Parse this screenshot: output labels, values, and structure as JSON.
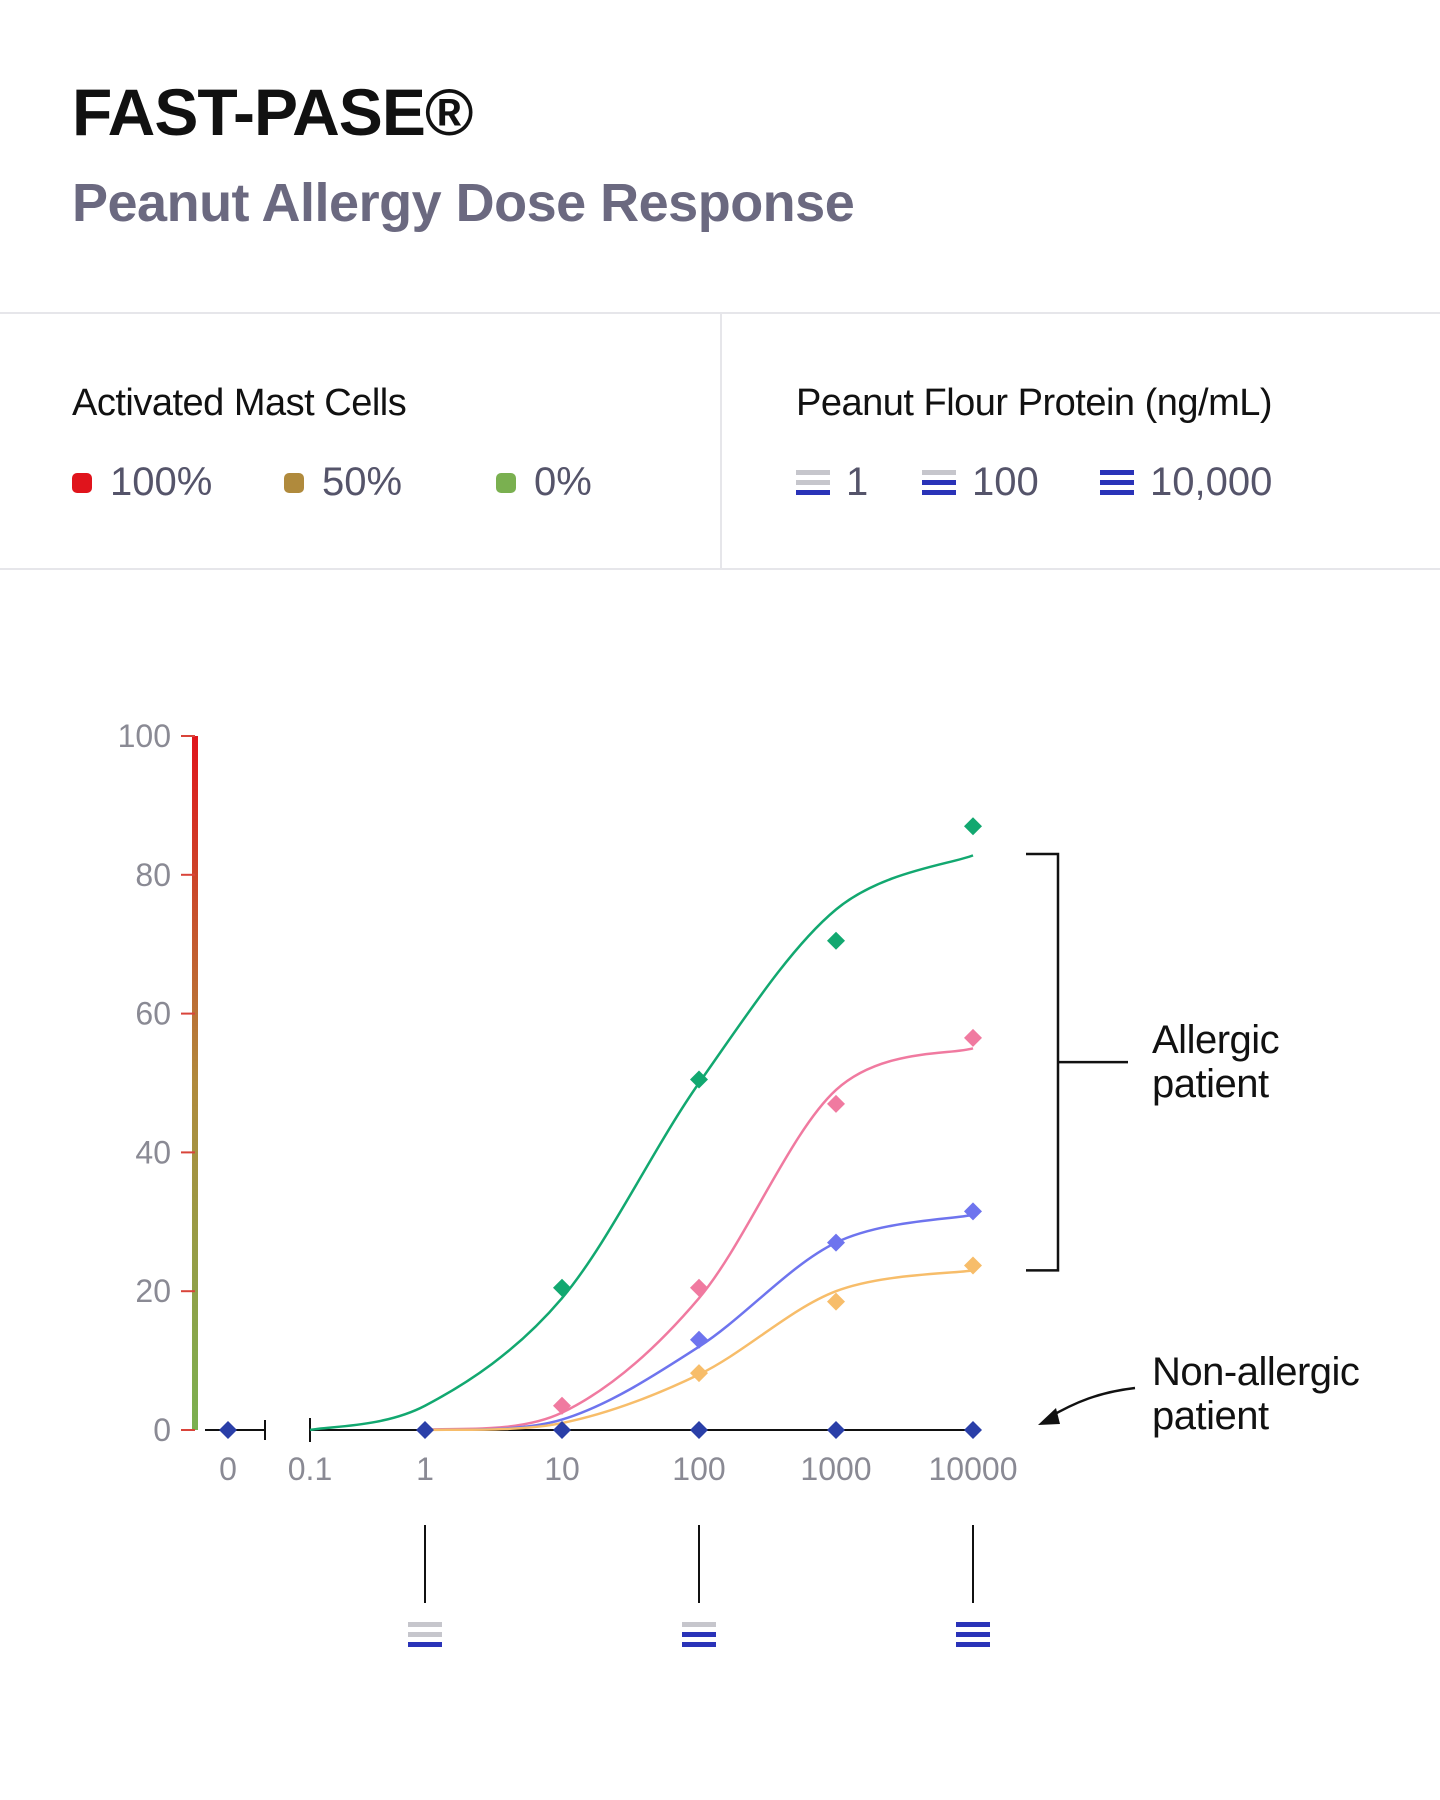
{
  "header": {
    "title": "FAST-PASE®",
    "subtitle": "Peanut Allergy Dose Response"
  },
  "legend_cells": {
    "title": "Activated Mast Cells",
    "items": [
      {
        "label": "100%",
        "color": "#e0141c"
      },
      {
        "label": "50%",
        "color": "#b08a3c"
      },
      {
        "label": "0%",
        "color": "#7ab050"
      }
    ]
  },
  "legend_dose": {
    "title": "Peanut Flour Protein (ng/mL)",
    "items": [
      {
        "label": "1",
        "icon": "dose-low-icon"
      },
      {
        "label": "100",
        "icon": "dose-mid-icon"
      },
      {
        "label": "10,000",
        "icon": "dose-high-icon"
      }
    ]
  },
  "annotations": {
    "allergic_line1": "Allergic",
    "allergic_line2": "patient",
    "nonallergic_line1": "Non-allergic",
    "nonallergic_line2": "patient"
  },
  "chart_data": {
    "type": "scatter",
    "xscale": "log",
    "x_ticks": [
      "0",
      "0.1",
      "1",
      "10",
      "100",
      "1000",
      "10000"
    ],
    "y_ticks": [
      "0",
      "20",
      "40",
      "60",
      "80",
      "100"
    ],
    "ylim": [
      0,
      100
    ],
    "axis_gradient": [
      "#e0141c",
      "#b08a3c",
      "#7ab050"
    ],
    "series": [
      {
        "color": "#12a870",
        "points": [
          [
            10,
            20.5
          ],
          [
            100,
            50.5
          ],
          [
            1000,
            70.5
          ],
          [
            10000,
            87
          ]
        ],
        "fit": [
          [
            0.1,
            0
          ],
          [
            1,
            3.5
          ],
          [
            10,
            19
          ],
          [
            100,
            50
          ],
          [
            1000,
            75
          ],
          [
            10000,
            82.8
          ]
        ]
      },
      {
        "color": "#f07aa0",
        "points": [
          [
            10,
            3.5
          ],
          [
            100,
            20.5
          ],
          [
            1000,
            47
          ],
          [
            10000,
            56.5
          ]
        ],
        "fit": [
          [
            1,
            0
          ],
          [
            10,
            2.5
          ],
          [
            100,
            19
          ],
          [
            1000,
            49
          ],
          [
            10000,
            55
          ]
        ]
      },
      {
        "color": "#6e74ee",
        "points": [
          [
            100,
            13
          ],
          [
            1000,
            27
          ],
          [
            10000,
            31.5
          ]
        ],
        "fit": [
          [
            1,
            0
          ],
          [
            10,
            1.5
          ],
          [
            100,
            12
          ],
          [
            1000,
            27
          ],
          [
            10000,
            31
          ]
        ]
      },
      {
        "color": "#f7bd6a",
        "points": [
          [
            100,
            8.2
          ],
          [
            1000,
            18.5
          ],
          [
            10000,
            23.7
          ]
        ],
        "fit": [
          [
            1,
            0
          ],
          [
            10,
            1
          ],
          [
            100,
            8
          ],
          [
            1000,
            20
          ],
          [
            10000,
            23
          ]
        ]
      },
      {
        "color": "#2a3fa8",
        "points": [
          [
            0,
            0
          ],
          [
            1,
            0
          ],
          [
            10,
            0
          ],
          [
            100,
            0
          ],
          [
            1000,
            0
          ],
          [
            10000,
            0
          ]
        ],
        "fit": []
      }
    ],
    "dose_markers": [
      {
        "x": 1,
        "level": "1"
      },
      {
        "x": 100,
        "level": "100"
      },
      {
        "x": 10000,
        "level": "10,000"
      }
    ],
    "bracket": {
      "label": "Allergic patient",
      "y_range": [
        23,
        83
      ]
    },
    "arrow_label": "Non-allergic patient"
  }
}
